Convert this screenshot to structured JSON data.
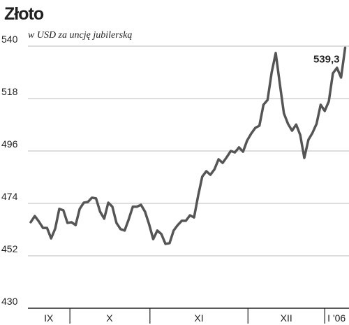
{
  "chart_data": {
    "type": "line",
    "title": "Złoto",
    "subtitle": "w USD za uncję jubilerską",
    "x": [
      0,
      1,
      2,
      3,
      4,
      5,
      6,
      7,
      8,
      9,
      10,
      11,
      12,
      13,
      14,
      15,
      16,
      17,
      18,
      19,
      20,
      21,
      22,
      23,
      24,
      25,
      26,
      27,
      28,
      29,
      30,
      31,
      32,
      33,
      34,
      35,
      36,
      37,
      38,
      39,
      40,
      41,
      42,
      43,
      44,
      45,
      46,
      47,
      48,
      49,
      50,
      51,
      52,
      53,
      54,
      55,
      56,
      57,
      58,
      59,
      60,
      61,
      62,
      63,
      64,
      65,
      66,
      67,
      68,
      69,
      70,
      71,
      72,
      73,
      74,
      75,
      76,
      77
    ],
    "xlim": [
      -0.68,
      77.6
    ],
    "xticks": [
      {
        "value": 4.4,
        "label": "IX"
      },
      {
        "value": 19.3,
        "label": "X"
      },
      {
        "value": 41.2,
        "label": "XI"
      },
      {
        "value": 62.6,
        "label": "XII"
      },
      {
        "value": 74.9,
        "label": "I '06"
      }
    ],
    "xseparators": [
      9.6,
      29.2,
      53.2,
      72
    ],
    "series": [
      {
        "name": null,
        "color": "#555555",
        "values": [
          466.1,
          468.7,
          466.4,
          463.7,
          463.7,
          459.3,
          463.4,
          471.7,
          471.1,
          465.8,
          466.1,
          464.9,
          471.7,
          474.3,
          474.6,
          476.4,
          476.1,
          470.5,
          467.6,
          474.3,
          472.6,
          465.8,
          463.2,
          462.6,
          467.3,
          472.6,
          472.6,
          473.4,
          470.5,
          465.2,
          459.0,
          462.6,
          461.1,
          457.0,
          457.3,
          462.6,
          464.9,
          466.7,
          466.7,
          469.0,
          468.1,
          477.2,
          485.2,
          487.5,
          486.0,
          488.3,
          492.5,
          491.0,
          493.4,
          496.0,
          495.4,
          497.5,
          495.7,
          500.4,
          503.3,
          505.7,
          506.6,
          515.4,
          517.4,
          528.9,
          537.1,
          524.2,
          511.8,
          507.4,
          504.5,
          507.1,
          502.7,
          493.1,
          500.7,
          503.6,
          507.4,
          515.4,
          512.8,
          516.8,
          528.6,
          530.9,
          526.8,
          539.3
        ],
        "value_labels": [
          null,
          null,
          null,
          null,
          null,
          null,
          null,
          null,
          null,
          null,
          null,
          null,
          null,
          null,
          null,
          null,
          null,
          null,
          null,
          null,
          null,
          null,
          null,
          null,
          null,
          null,
          null,
          null,
          null,
          null,
          null,
          null,
          null,
          null,
          null,
          null,
          null,
          null,
          null,
          null,
          null,
          null,
          null,
          null,
          null,
          null,
          null,
          null,
          null,
          null,
          null,
          null,
          null,
          null,
          null,
          null,
          null,
          null,
          null,
          null,
          null,
          null,
          null,
          null,
          null,
          null,
          null,
          null,
          null,
          null,
          null,
          null,
          null,
          null,
          null,
          null,
          null,
          "539,3"
        ]
      }
    ],
    "ylim": [
      430,
      540
    ],
    "yticks": [
      430,
      452,
      474,
      496,
      518,
      540
    ],
    "grid": true
  }
}
